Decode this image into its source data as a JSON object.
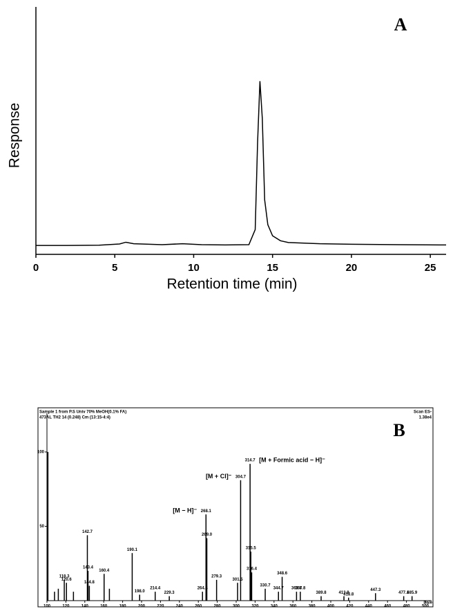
{
  "chart_data": [
    {
      "type": "line",
      "panel": "A",
      "ylabel": "Response",
      "xlabel": "Retention time (min)",
      "x": [
        0,
        2,
        4,
        5.3,
        5.7,
        6.2,
        8,
        9.3,
        10.5,
        12,
        13.5,
        13.9,
        14.05,
        14.2,
        14.35,
        14.5,
        14.7,
        15,
        15.5,
        16,
        18,
        20,
        23,
        26
      ],
      "series": [
        {
          "color": "#000000",
          "values": [
            3.6,
            3.6,
            3.7,
            4.2,
            4.9,
            4.3,
            3.9,
            4.3,
            3.9,
            3.8,
            3.9,
            10,
            45,
            70,
            55,
            22,
            12,
            7.5,
            5.5,
            4.8,
            4.3,
            4.1,
            3.9,
            3.8
          ]
        }
      ],
      "xlim": [
        0,
        26
      ],
      "xticks": [
        0,
        5,
        10,
        15,
        20,
        25
      ],
      "ylim": [
        0,
        100
      ]
    },
    {
      "type": "spectrum",
      "panel": "B",
      "header": [
        "Sample 1 from P.S Univ 70% MeOH(0.1% FA)",
        "473AL TH2 14 (0.248) Cm (13:15-4:4)"
      ],
      "corner": [
        "Scan ES-",
        "1.38e4"
      ],
      "x_unit": "Da/e",
      "x": [
        101,
        108,
        112,
        118.3,
        120.6,
        128,
        142.7,
        143.4,
        144.8,
        160.4,
        166,
        190.1,
        198.0,
        214.4,
        229.3,
        264.4,
        268.1,
        269.0,
        279.3,
        301.5,
        304.7,
        314.7,
        315.5,
        316.4,
        330.7,
        344.7,
        348.6,
        363.8,
        367.8,
        389.8,
        413.9,
        418.8,
        447.3,
        477.1,
        485.9
      ],
      "series": [
        {
          "color": "#000000",
          "values": [
            100,
            6,
            8,
            14,
            12,
            6,
            44,
            20,
            10,
            18,
            8,
            32,
            4,
            6,
            3,
            6,
            58,
            42,
            14,
            12,
            81,
            92,
            33,
            19,
            8,
            6,
            16,
            6,
            6,
            3,
            3,
            2,
            5,
            3,
            3
          ]
        }
      ],
      "peak_labels": [
        null,
        null,
        null,
        "118.3",
        "120.6",
        null,
        "142.7",
        "143.4",
        "144.8",
        "160.4",
        null,
        "190.1",
        "198.0",
        "214.4",
        "229.3",
        "264.4",
        "268.1",
        "269.0",
        "279.3",
        "301.5",
        "304.7",
        "314.7",
        "315.5",
        "316.4",
        "330.7",
        "344.7",
        "348.6",
        "363.8",
        "367.8",
        "389.8",
        "413.9",
        "418.8",
        "447.3",
        "477.1",
        "485.9"
      ],
      "ion_labels": [
        null,
        null,
        null,
        null,
        null,
        null,
        null,
        null,
        null,
        null,
        null,
        null,
        null,
        null,
        null,
        null,
        "[M − H]⁻",
        null,
        null,
        null,
        "[M + Cl]⁻",
        "[M + Formic acid − H]⁻",
        null,
        null,
        null,
        null,
        null,
        null,
        null,
        null,
        null,
        null,
        null,
        null,
        null
      ],
      "xlim": [
        100,
        500
      ],
      "xticks": [
        100,
        120,
        140,
        160,
        180,
        200,
        220,
        240,
        260,
        280,
        300,
        320,
        340,
        360,
        380,
        400,
        420,
        440,
        460,
        480,
        500
      ],
      "ylim": [
        0,
        126
      ],
      "yticks": [
        50,
        100
      ]
    }
  ]
}
